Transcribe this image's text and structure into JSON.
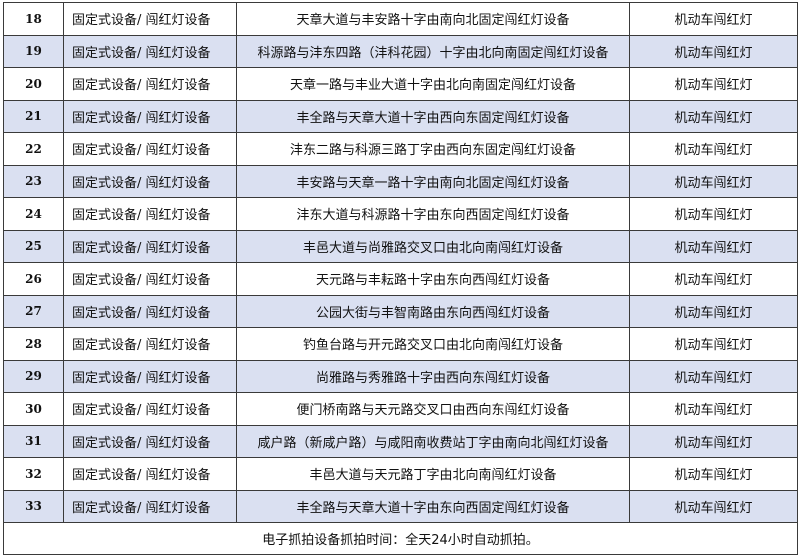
{
  "table": {
    "rows": [
      {
        "no": "18",
        "type": "固定式设备/ 闯红灯设备",
        "location": "天章大道与丰安路十字由南向北固定闯红灯设备",
        "violation": "机动车闯红灯"
      },
      {
        "no": "19",
        "type": "固定式设备/ 闯红灯设备",
        "location": "科源路与沣东四路（沣科花园）十字由北向南固定闯红灯设备",
        "violation": "机动车闯红灯"
      },
      {
        "no": "20",
        "type": "固定式设备/ 闯红灯设备",
        "location": "天章一路与丰业大道十字由北向南固定闯红灯设备",
        "violation": "机动车闯红灯"
      },
      {
        "no": "21",
        "type": "固定式设备/ 闯红灯设备",
        "location": "丰全路与天章大道十字由西向东固定闯红灯设备",
        "violation": "机动车闯红灯"
      },
      {
        "no": "22",
        "type": "固定式设备/ 闯红灯设备",
        "location": "沣东二路与科源三路丁字由西向东固定闯红灯设备",
        "violation": "机动车闯红灯"
      },
      {
        "no": "23",
        "type": "固定式设备/ 闯红灯设备",
        "location": "丰安路与天章一路十字由南向北固定闯红灯设备",
        "violation": "机动车闯红灯"
      },
      {
        "no": "24",
        "type": "固定式设备/ 闯红灯设备",
        "location": "沣东大道与科源路十字由东向西固定闯红灯设备",
        "violation": "机动车闯红灯"
      },
      {
        "no": "25",
        "type": "固定式设备/ 闯红灯设备",
        "location": "丰邑大道与尚雅路交叉口由北向南闯红灯设备",
        "violation": "机动车闯红灯"
      },
      {
        "no": "26",
        "type": "固定式设备/ 闯红灯设备",
        "location": "天元路与丰耘路十字由东向西闯红灯设备",
        "violation": "机动车闯红灯"
      },
      {
        "no": "27",
        "type": "固定式设备/ 闯红灯设备",
        "location": "公园大街与丰智南路由东向西闯红灯设备",
        "violation": "机动车闯红灯"
      },
      {
        "no": "28",
        "type": "固定式设备/ 闯红灯设备",
        "location": "钓鱼台路与开元路交叉口由北向南闯红灯设备",
        "violation": "机动车闯红灯"
      },
      {
        "no": "29",
        "type": "固定式设备/ 闯红灯设备",
        "location": "尚雅路与秀雅路十字由西向东闯红灯设备",
        "violation": "机动车闯红灯"
      },
      {
        "no": "30",
        "type": "固定式设备/ 闯红灯设备",
        "location": "便门桥南路与天元路交叉口由西向东闯红灯设备",
        "violation": "机动车闯红灯"
      },
      {
        "no": "31",
        "type": "固定式设备/ 闯红灯设备",
        "location": "咸户路（新咸户路）与咸阳南收费站丁字由南向北闯红灯设备",
        "violation": "机动车闯红灯"
      },
      {
        "no": "32",
        "type": "固定式设备/ 闯红灯设备",
        "location": "丰邑大道与天元路丁字由北向南闯红灯设备",
        "violation": "机动车闯红灯"
      },
      {
        "no": "33",
        "type": "固定式设备/ 闯红灯设备",
        "location": "丰全路与天章大道十字由东向西固定闯红灯设备",
        "violation": "机动车闯红灯"
      }
    ],
    "footer": "电子抓拍设备抓拍时间：全天24小时自动抓拍。",
    "colors": {
      "alt_row": "#dae0f1",
      "border": "#3a3a3a"
    }
  }
}
